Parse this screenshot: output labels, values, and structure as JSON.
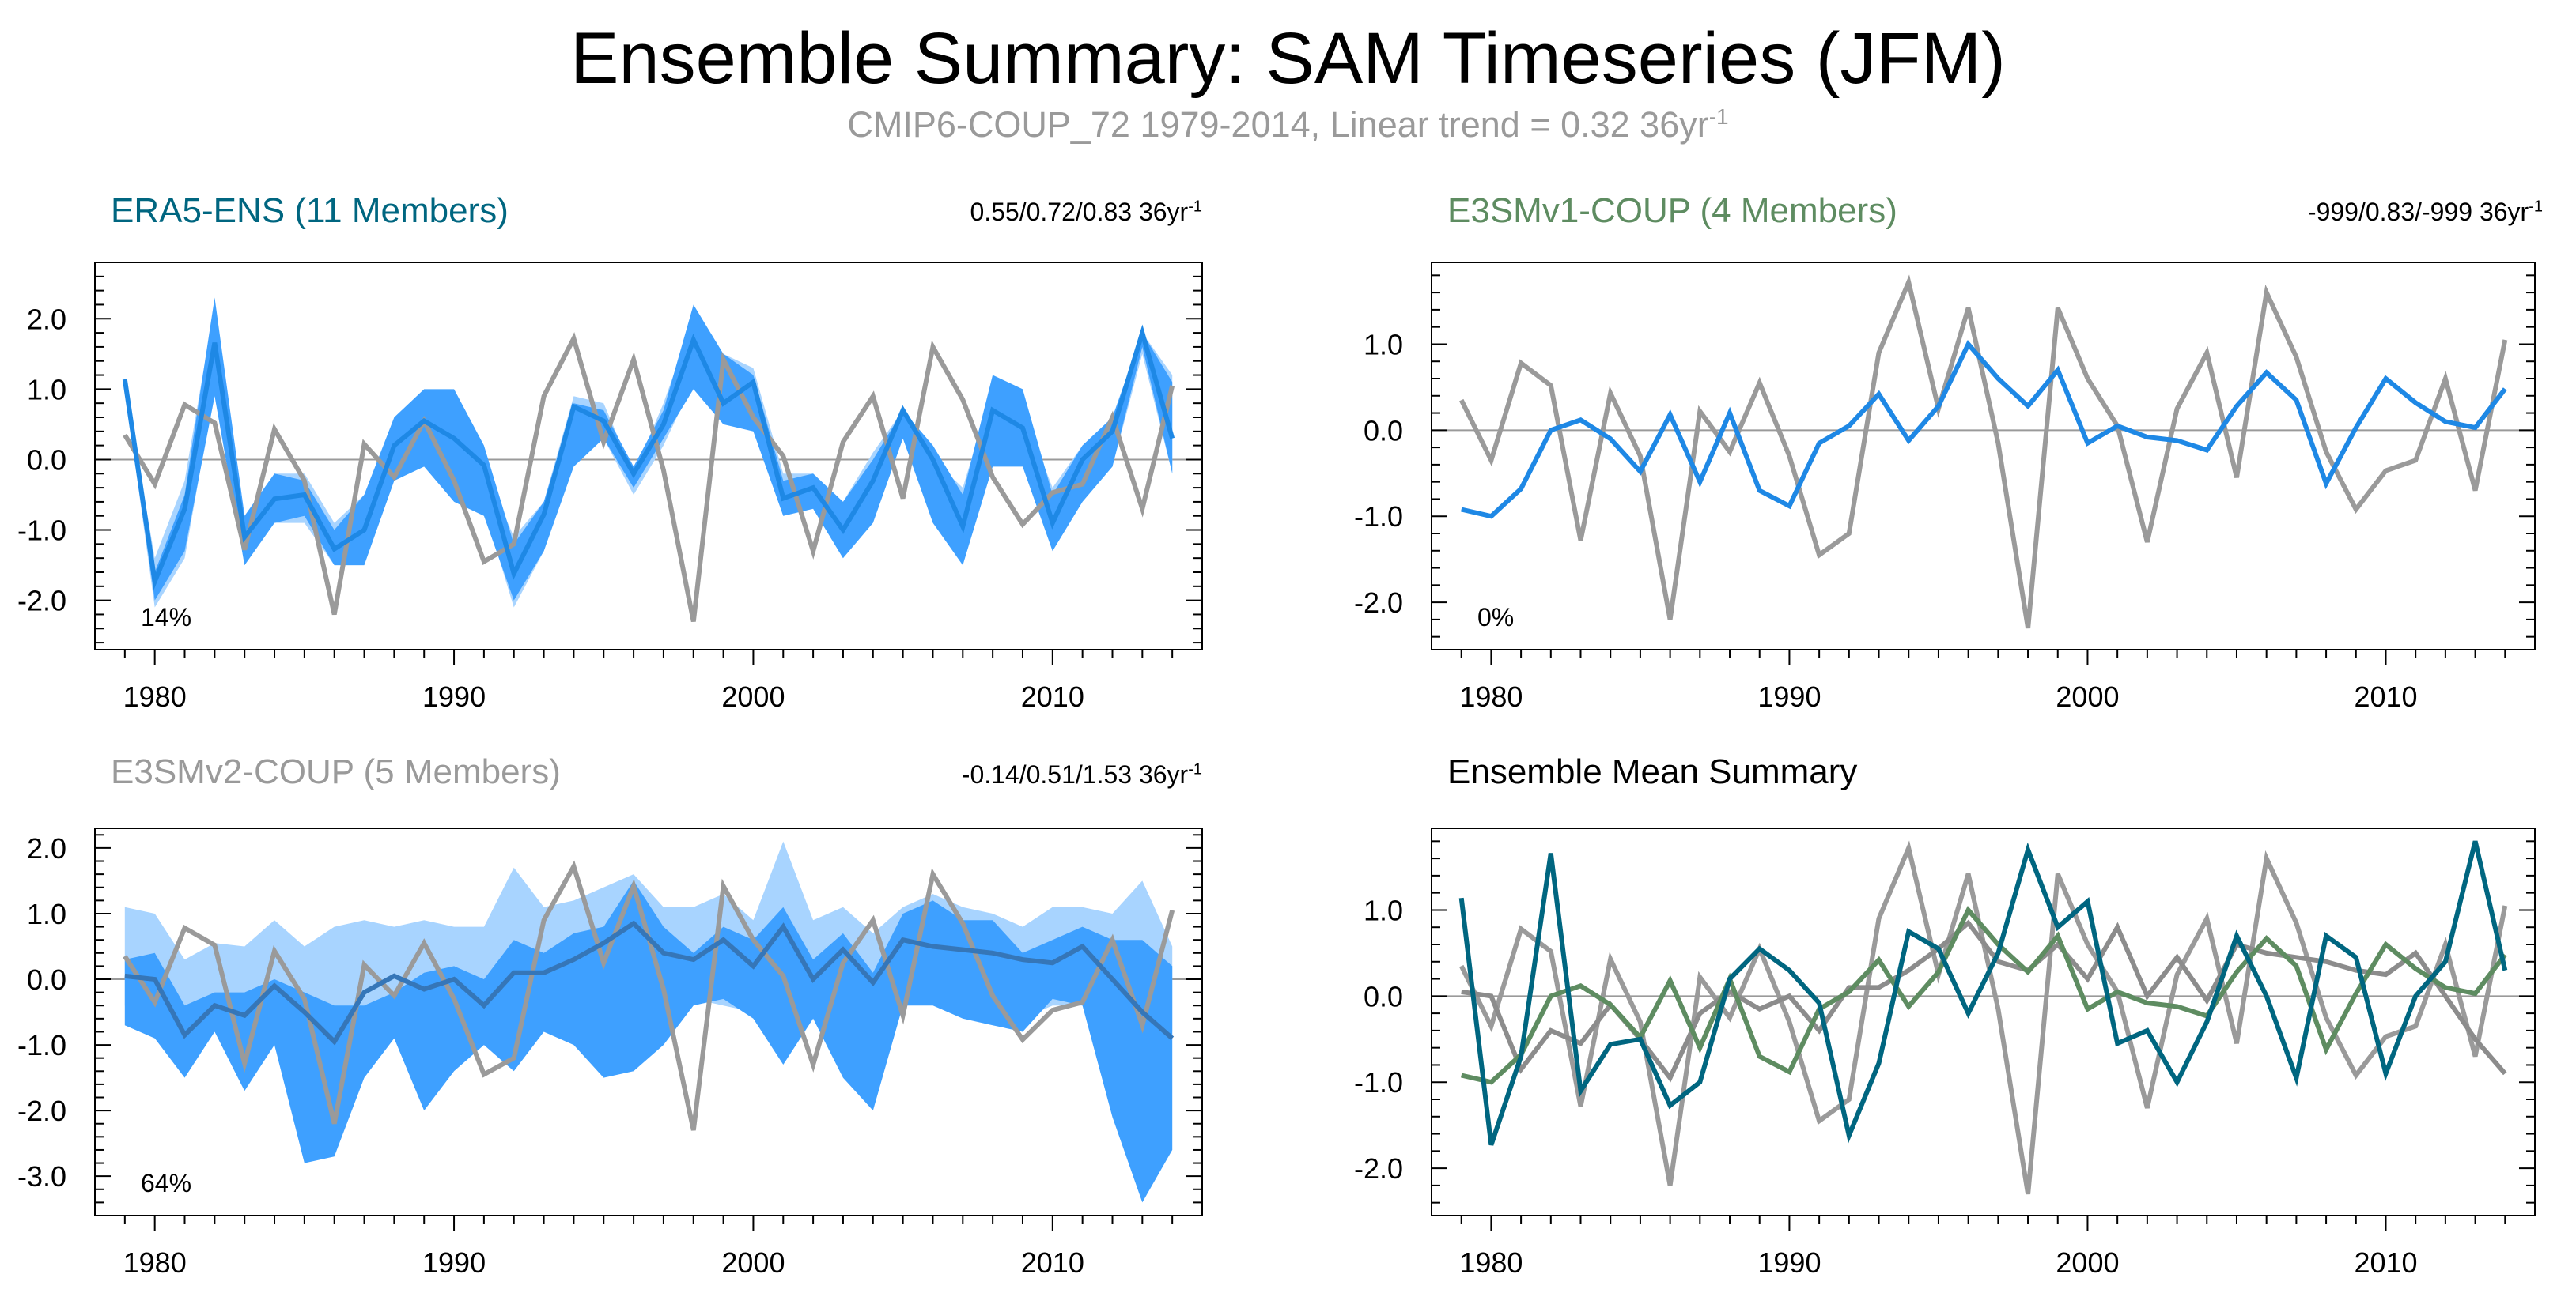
{
  "title": "Ensemble Summary: SAM Timeseries (JFM)",
  "subtitle": "CMIP6-COUP_72 1979-2014, Linear trend = 0.32 36yr",
  "subtitle_sup": "-1",
  "colors": {
    "obs": "#1e88e5",
    "obs_band": "#3ea0ff",
    "obs_band_light": "#a8d4ff",
    "gray": "#9a9a9a",
    "era5": "#006680",
    "e3smv1": "#5e8c61"
  },
  "chart_data": [
    {
      "id": "era5",
      "type": "line",
      "title": "ERA5-ENS (11 Members)",
      "title_color": "#006680",
      "trend_text": "0.55/0.72/0.83 36yr",
      "trend_sup": "-1",
      "percent_label": "14%",
      "x": [
        1979,
        1980,
        1981,
        1982,
        1983,
        1984,
        1985,
        1986,
        1987,
        1988,
        1989,
        1990,
        1991,
        1992,
        1993,
        1994,
        1995,
        1996,
        1997,
        1998,
        1999,
        2000,
        2001,
        2002,
        2003,
        2004,
        2005,
        2006,
        2007,
        2008,
        2009,
        2010,
        2011,
        2012,
        2013,
        2014
      ],
      "xlim": [
        1978,
        2015
      ],
      "ylim": [
        -2.7,
        2.8
      ],
      "yticks": [
        2.0,
        1.0,
        0.0,
        -1.0,
        -2.0
      ],
      "ytick_labels": [
        "2.0",
        "1.0",
        "0.0",
        "-1.0",
        "-2.0"
      ],
      "xticks": [
        1980,
        1990,
        2000,
        2010
      ],
      "xtick_labels": [
        "1980",
        "1990",
        "2000",
        "2010"
      ],
      "band_light_upper": [
        1.1,
        -1.4,
        -0.3,
        2.2,
        -0.8,
        -0.2,
        -0.2,
        -0.9,
        -0.5,
        0.5,
        0.8,
        0.3,
        -0.1,
        -1.1,
        -0.6,
        0.9,
        0.8,
        -0.2,
        0.8,
        2.0,
        1.5,
        1.3,
        -0.2,
        -0.2,
        -0.6,
        0.1,
        0.7,
        0.0,
        -0.4,
        1.0,
        0.7,
        -0.4,
        0.2,
        0.6,
        1.8,
        1.2
      ],
      "band_light_lower": [
        1.0,
        -2.1,
        -1.4,
        1.0,
        -1.5,
        -0.9,
        -0.9,
        -1.5,
        -1.5,
        -0.2,
        0.0,
        -0.4,
        -0.7,
        -2.1,
        -1.3,
        0.0,
        0.3,
        -0.5,
        0.2,
        1.1,
        0.5,
        0.5,
        -0.8,
        -0.7,
        -1.4,
        -0.8,
        0.3,
        -0.8,
        -1.5,
        0.0,
        0.1,
        -1.3,
        -0.6,
        -0.1,
        1.5,
        -0.2
      ],
      "band_upper": [
        1.1,
        -1.6,
        -0.5,
        2.3,
        -0.8,
        -0.2,
        -0.3,
        -1.0,
        -0.5,
        0.6,
        1.0,
        1.0,
        0.2,
        -1.2,
        -0.6,
        0.8,
        0.7,
        -0.1,
        0.7,
        2.2,
        1.5,
        1.2,
        -0.3,
        -0.2,
        -0.6,
        0.0,
        0.7,
        0.2,
        -0.5,
        1.2,
        1.0,
        -0.5,
        0.2,
        0.6,
        1.8,
        1.1
      ],
      "band_lower": [
        1.0,
        -2.0,
        -1.3,
        0.9,
        -1.5,
        -0.9,
        -0.8,
        -1.5,
        -1.5,
        -0.3,
        -0.1,
        -0.6,
        -0.8,
        -2.0,
        -1.3,
        -0.1,
        0.3,
        -0.4,
        0.3,
        1.0,
        0.5,
        0.4,
        -0.8,
        -0.7,
        -1.4,
        -0.9,
        0.3,
        -0.9,
        -1.5,
        -0.1,
        -0.1,
        -1.3,
        -0.6,
        -0.1,
        1.6,
        -0.2
      ],
      "series": [
        {
          "name": "ensemble",
          "color": "#1e88e5",
          "values": [
            1.14,
            -1.73,
            -0.7,
            1.66,
            -1.1,
            -0.56,
            -0.5,
            -1.27,
            -1.0,
            0.2,
            0.55,
            0.3,
            -0.08,
            -1.62,
            -0.78,
            0.75,
            0.55,
            -0.2,
            0.5,
            1.7,
            0.8,
            1.1,
            -0.55,
            -0.4,
            -1.0,
            -0.3,
            0.7,
            0.0,
            -0.95,
            0.7,
            0.45,
            -0.9,
            0.0,
            0.4,
            1.8,
            0.3
          ]
        },
        {
          "name": "CMIP6-COUP_72",
          "color": "#9a9a9a",
          "values": [
            0.35,
            -0.35,
            0.78,
            0.52,
            -1.28,
            0.43,
            -0.3,
            -2.2,
            0.22,
            -0.25,
            0.55,
            -0.3,
            -1.45,
            -1.2,
            0.9,
            1.72,
            0.25,
            1.42,
            -0.15,
            -2.3,
            1.42,
            0.6,
            0.05,
            -1.3,
            0.25,
            0.9,
            -0.55,
            1.6,
            0.85,
            -0.25,
            -0.92,
            -0.47,
            -0.35,
            0.6,
            -0.7,
            1.05
          ]
        }
      ]
    },
    {
      "id": "e3smv1",
      "type": "line",
      "title": "E3SMv1-COUP (4 Members)",
      "title_color": "#5e8c61",
      "trend_text": "-999/0.83/-999 36yr",
      "trend_sup": "-1",
      "percent_label": "0%",
      "x": [
        1979,
        1980,
        1981,
        1982,
        1983,
        1984,
        1985,
        1986,
        1987,
        1988,
        1989,
        1990,
        1991,
        1992,
        1993,
        1994,
        1995,
        1996,
        1997,
        1998,
        1999,
        2000,
        2001,
        2002,
        2003,
        2004,
        2005,
        2006,
        2007,
        2008,
        2009,
        2010,
        2011,
        2012,
        2013,
        2014
      ],
      "xlim": [
        1978,
        2015
      ],
      "ylim": [
        -2.55,
        1.95
      ],
      "yticks": [
        1.0,
        0.0,
        -1.0,
        -2.0
      ],
      "ytick_labels": [
        "1.0",
        "0.0",
        "-1.0",
        "-2.0"
      ],
      "xticks": [
        1980,
        1990,
        2000,
        2010
      ],
      "xtick_labels": [
        "1980",
        "1990",
        "2000",
        "2010"
      ],
      "series": [
        {
          "name": "ensemble",
          "color": "#1e88e5",
          "values": [
            -0.92,
            -1.0,
            -0.68,
            0.0,
            0.12,
            -0.1,
            -0.48,
            0.18,
            -0.6,
            0.2,
            -0.7,
            -0.88,
            -0.15,
            0.05,
            0.42,
            -0.12,
            0.28,
            1.0,
            0.6,
            0.28,
            0.7,
            -0.15,
            0.05,
            -0.08,
            -0.12,
            -0.23,
            0.28,
            0.67,
            0.35,
            -0.62,
            0.03,
            0.6,
            0.32,
            0.1,
            0.03,
            0.48
          ]
        },
        {
          "name": "CMIP6-COUP_72",
          "color": "#9a9a9a",
          "values": [
            0.35,
            -0.35,
            0.78,
            0.52,
            -1.28,
            0.43,
            -0.3,
            -2.2,
            0.22,
            -0.25,
            0.55,
            -0.3,
            -1.45,
            -1.2,
            0.9,
            1.72,
            0.25,
            1.42,
            -0.15,
            -2.3,
            1.42,
            0.6,
            0.05,
            -1.3,
            0.25,
            0.9,
            -0.55,
            1.6,
            0.85,
            -0.25,
            -0.92,
            -0.47,
            -0.35,
            0.6,
            -0.7,
            1.05
          ]
        }
      ]
    },
    {
      "id": "e3smv2",
      "type": "line",
      "title": "E3SMv2-COUP (5 Members)",
      "title_color": "#9a9a9a",
      "trend_text": "-0.14/0.51/1.53 36yr",
      "trend_sup": "-1",
      "percent_label": "64%",
      "x": [
        1979,
        1980,
        1981,
        1982,
        1983,
        1984,
        1985,
        1986,
        1987,
        1988,
        1989,
        1990,
        1991,
        1992,
        1993,
        1994,
        1995,
        1996,
        1997,
        1998,
        1999,
        2000,
        2001,
        2002,
        2003,
        2004,
        2005,
        2006,
        2007,
        2008,
        2009,
        2010,
        2011,
        2012,
        2013,
        2014
      ],
      "xlim": [
        1978,
        2015
      ],
      "ylim": [
        -3.6,
        2.3
      ],
      "yticks": [
        2.0,
        1.0,
        0.0,
        -1.0,
        -2.0,
        -3.0
      ],
      "ytick_labels": [
        "2.0",
        "1.0",
        "0.0",
        "-1.0",
        "-2.0",
        "-3.0"
      ],
      "xticks": [
        1980,
        1990,
        2000,
        2010
      ],
      "xtick_labels": [
        "1980",
        "1990",
        "2000",
        "2010"
      ],
      "band_light_upper": [
        1.1,
        1.0,
        0.3,
        0.55,
        0.5,
        0.9,
        0.5,
        0.8,
        0.9,
        0.8,
        0.9,
        0.8,
        0.8,
        1.7,
        1.1,
        1.2,
        1.4,
        1.6,
        1.1,
        1.1,
        1.3,
        0.9,
        2.1,
        0.9,
        1.1,
        0.7,
        1.1,
        1.3,
        1.1,
        1.0,
        0.8,
        1.1,
        1.1,
        1.0,
        1.5,
        0.5
      ],
      "band_light_lower": [
        -0.4,
        -0.6,
        -0.6,
        -0.7,
        -0.9,
        -0.5,
        -0.8,
        -1.0,
        -0.5,
        -0.5,
        -0.7,
        -0.5,
        -0.5,
        -0.4,
        -0.4,
        -0.7,
        -0.5,
        -0.3,
        -0.5,
        -0.3,
        -0.4,
        -0.5,
        -0.6,
        -0.5,
        -0.4,
        -0.5,
        -0.4,
        -0.3,
        -0.4,
        -0.4,
        -0.6,
        -0.4,
        -0.4,
        -0.5,
        -0.6,
        -0.8
      ],
      "band_upper": [
        0.3,
        0.4,
        -0.4,
        -0.2,
        -0.2,
        0.0,
        -0.2,
        -0.4,
        -0.4,
        -0.2,
        0.1,
        0.2,
        0.0,
        0.6,
        0.4,
        0.7,
        0.8,
        1.5,
        0.8,
        0.4,
        0.8,
        0.6,
        1.1,
        0.3,
        0.7,
        0.1,
        1.0,
        1.2,
        0.9,
        0.9,
        0.4,
        0.6,
        0.8,
        0.6,
        0.6,
        0.2
      ],
      "band_lower": [
        -0.7,
        -0.9,
        -1.5,
        -0.8,
        -1.7,
        -1.0,
        -2.8,
        -2.7,
        -1.5,
        -0.9,
        -2.0,
        -1.4,
        -1.0,
        -1.4,
        -0.8,
        -1.0,
        -1.5,
        -1.4,
        -1.0,
        -0.4,
        -0.3,
        -0.6,
        -1.3,
        -0.6,
        -1.5,
        -2.0,
        -0.4,
        -0.4,
        -0.6,
        -0.7,
        -0.8,
        -0.3,
        -0.4,
        -2.1,
        -3.4,
        -2.6
      ],
      "series": [
        {
          "name": "ensemble",
          "color": "#3576b8",
          "values": [
            0.05,
            0.0,
            -0.85,
            -0.4,
            -0.55,
            -0.1,
            -0.5,
            -0.95,
            -0.2,
            0.05,
            -0.15,
            0.0,
            -0.4,
            0.1,
            0.1,
            0.3,
            0.55,
            0.85,
            0.4,
            0.3,
            0.6,
            0.2,
            0.8,
            0.0,
            0.45,
            -0.05,
            0.6,
            0.5,
            0.45,
            0.4,
            0.3,
            0.25,
            0.5,
            0.0,
            -0.5,
            -0.9
          ]
        },
        {
          "name": "CMIP6-COUP_72",
          "color": "#9a9a9a",
          "values": [
            0.35,
            -0.35,
            0.78,
            0.52,
            -1.28,
            0.43,
            -0.3,
            -2.2,
            0.22,
            -0.25,
            0.55,
            -0.3,
            -1.45,
            -1.2,
            0.9,
            1.72,
            0.25,
            1.42,
            -0.15,
            -2.3,
            1.42,
            0.6,
            0.05,
            -1.3,
            0.25,
            0.9,
            -0.55,
            1.6,
            0.85,
            -0.25,
            -0.92,
            -0.47,
            -0.35,
            0.6,
            -0.7,
            1.05
          ]
        }
      ]
    },
    {
      "id": "mean",
      "type": "line",
      "title": "Ensemble Mean Summary",
      "title_color": "#000000",
      "trend_text": "",
      "trend_sup": "",
      "percent_label": "",
      "x": [
        1979,
        1980,
        1981,
        1982,
        1983,
        1984,
        1985,
        1986,
        1987,
        1988,
        1989,
        1990,
        1991,
        1992,
        1993,
        1994,
        1995,
        1996,
        1997,
        1998,
        1999,
        2000,
        2001,
        2002,
        2003,
        2004,
        2005,
        2006,
        2007,
        2008,
        2009,
        2010,
        2011,
        2012,
        2013,
        2014
      ],
      "xlim": [
        1978,
        2015
      ],
      "ylim": [
        -2.55,
        1.95
      ],
      "yticks": [
        1.0,
        0.0,
        -1.0,
        -2.0
      ],
      "ytick_labels": [
        "1.0",
        "0.0",
        "-1.0",
        "-2.0"
      ],
      "xticks": [
        1980,
        1990,
        2000,
        2010
      ],
      "xtick_labels": [
        "1980",
        "1990",
        "2000",
        "2010"
      ],
      "series": [
        {
          "name": "CMIP6-COUP_72",
          "color": "#9a9a9a",
          "values": [
            0.35,
            -0.35,
            0.78,
            0.52,
            -1.28,
            0.43,
            -0.3,
            -2.2,
            0.22,
            -0.25,
            0.55,
            -0.3,
            -1.45,
            -1.2,
            0.9,
            1.72,
            0.25,
            1.42,
            -0.15,
            -2.3,
            1.42,
            0.6,
            0.05,
            -1.3,
            0.25,
            0.9,
            -0.55,
            1.6,
            0.85,
            -0.25,
            -0.92,
            -0.47,
            -0.35,
            0.6,
            -0.7,
            1.05
          ]
        },
        {
          "name": "E3SMv2-COUP",
          "color": "#8c8c8c",
          "values": [
            0.05,
            0.0,
            -0.85,
            -0.4,
            -0.55,
            -0.1,
            -0.5,
            -0.95,
            -0.2,
            0.05,
            -0.15,
            0.0,
            -0.4,
            0.1,
            0.1,
            0.3,
            0.55,
            0.85,
            0.4,
            0.3,
            0.6,
            0.2,
            0.8,
            0.0,
            0.45,
            -0.05,
            0.6,
            0.5,
            0.45,
            0.4,
            0.3,
            0.25,
            0.5,
            0.0,
            -0.5,
            -0.9
          ]
        },
        {
          "name": "E3SMv1-COUP",
          "color": "#5e8c61",
          "values": [
            -0.92,
            -1.0,
            -0.68,
            0.0,
            0.12,
            -0.1,
            -0.48,
            0.18,
            -0.6,
            0.2,
            -0.7,
            -0.88,
            -0.15,
            0.05,
            0.42,
            -0.12,
            0.28,
            1.0,
            0.6,
            0.28,
            0.7,
            -0.15,
            0.05,
            -0.08,
            -0.12,
            -0.23,
            0.28,
            0.67,
            0.35,
            -0.62,
            0.03,
            0.6,
            0.32,
            0.1,
            0.03,
            0.48
          ]
        },
        {
          "name": "ERA5-ENS",
          "color": "#006680",
          "values": [
            1.14,
            -1.73,
            -0.7,
            1.66,
            -1.1,
            -0.56,
            -0.5,
            -1.27,
            -1.0,
            0.2,
            0.55,
            0.3,
            -0.08,
            -1.62,
            -0.78,
            0.75,
            0.55,
            -0.2,
            0.5,
            1.7,
            0.8,
            1.1,
            -0.55,
            -0.4,
            -1.0,
            -0.3,
            0.7,
            0.0,
            -0.95,
            0.7,
            0.45,
            -0.9,
            0.0,
            0.4,
            1.8,
            0.3
          ]
        }
      ]
    }
  ]
}
